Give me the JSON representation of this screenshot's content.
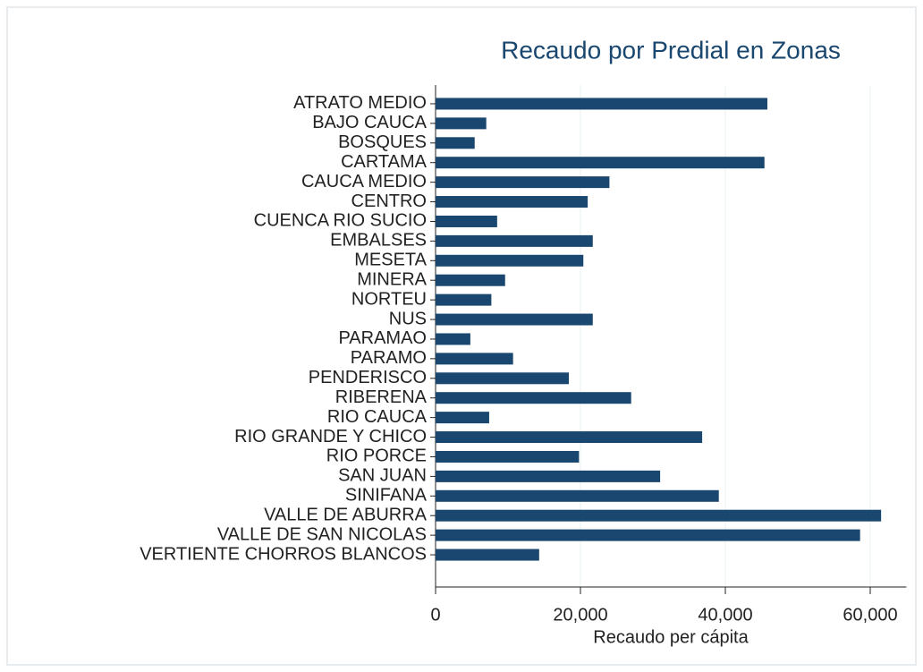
{
  "chart_data": {
    "type": "hbar",
    "title": "Recaudo por Predial en Zonas",
    "x_label": "Recaudo per cápita",
    "categories": [
      "ATRATO MEDIO",
      "BAJO CAUCA",
      "BOSQUES",
      "CARTAMA",
      "CAUCA MEDIO",
      "CENTRO",
      "CUENCA RIO SUCIO",
      "EMBALSES",
      "MESETA",
      "MINERA",
      "NORTEU",
      "NUS",
      "PARAMAO",
      "PARAMO",
      "PENDERISCO",
      "RIBERENA",
      "RIO CAUCA",
      "RIO GRANDE Y CHICO",
      "RIO PORCE",
      "SAN JUAN",
      "SINIFANA",
      "VALLE DE ABURRA",
      "VALLE DE SAN NICOLAS",
      "VERTIENTE CHORROS BLANCOS"
    ],
    "values": [
      45800,
      7000,
      5400,
      45400,
      24000,
      21000,
      8500,
      21700,
      20400,
      9600,
      7700,
      21700,
      4800,
      10700,
      18400,
      27000,
      7400,
      36800,
      19800,
      31000,
      39100,
      61500,
      58600,
      14300
    ],
    "color": "#1a476f",
    "xlim": [
      0,
      65000
    ],
    "xticks": [
      0,
      {
        "value": 20000,
        "label": "20,000"
      },
      {
        "value": 40000,
        "label": "40,000"
      },
      {
        "value": 60000,
        "label": "60,000"
      }
    ],
    "grid": true
  }
}
